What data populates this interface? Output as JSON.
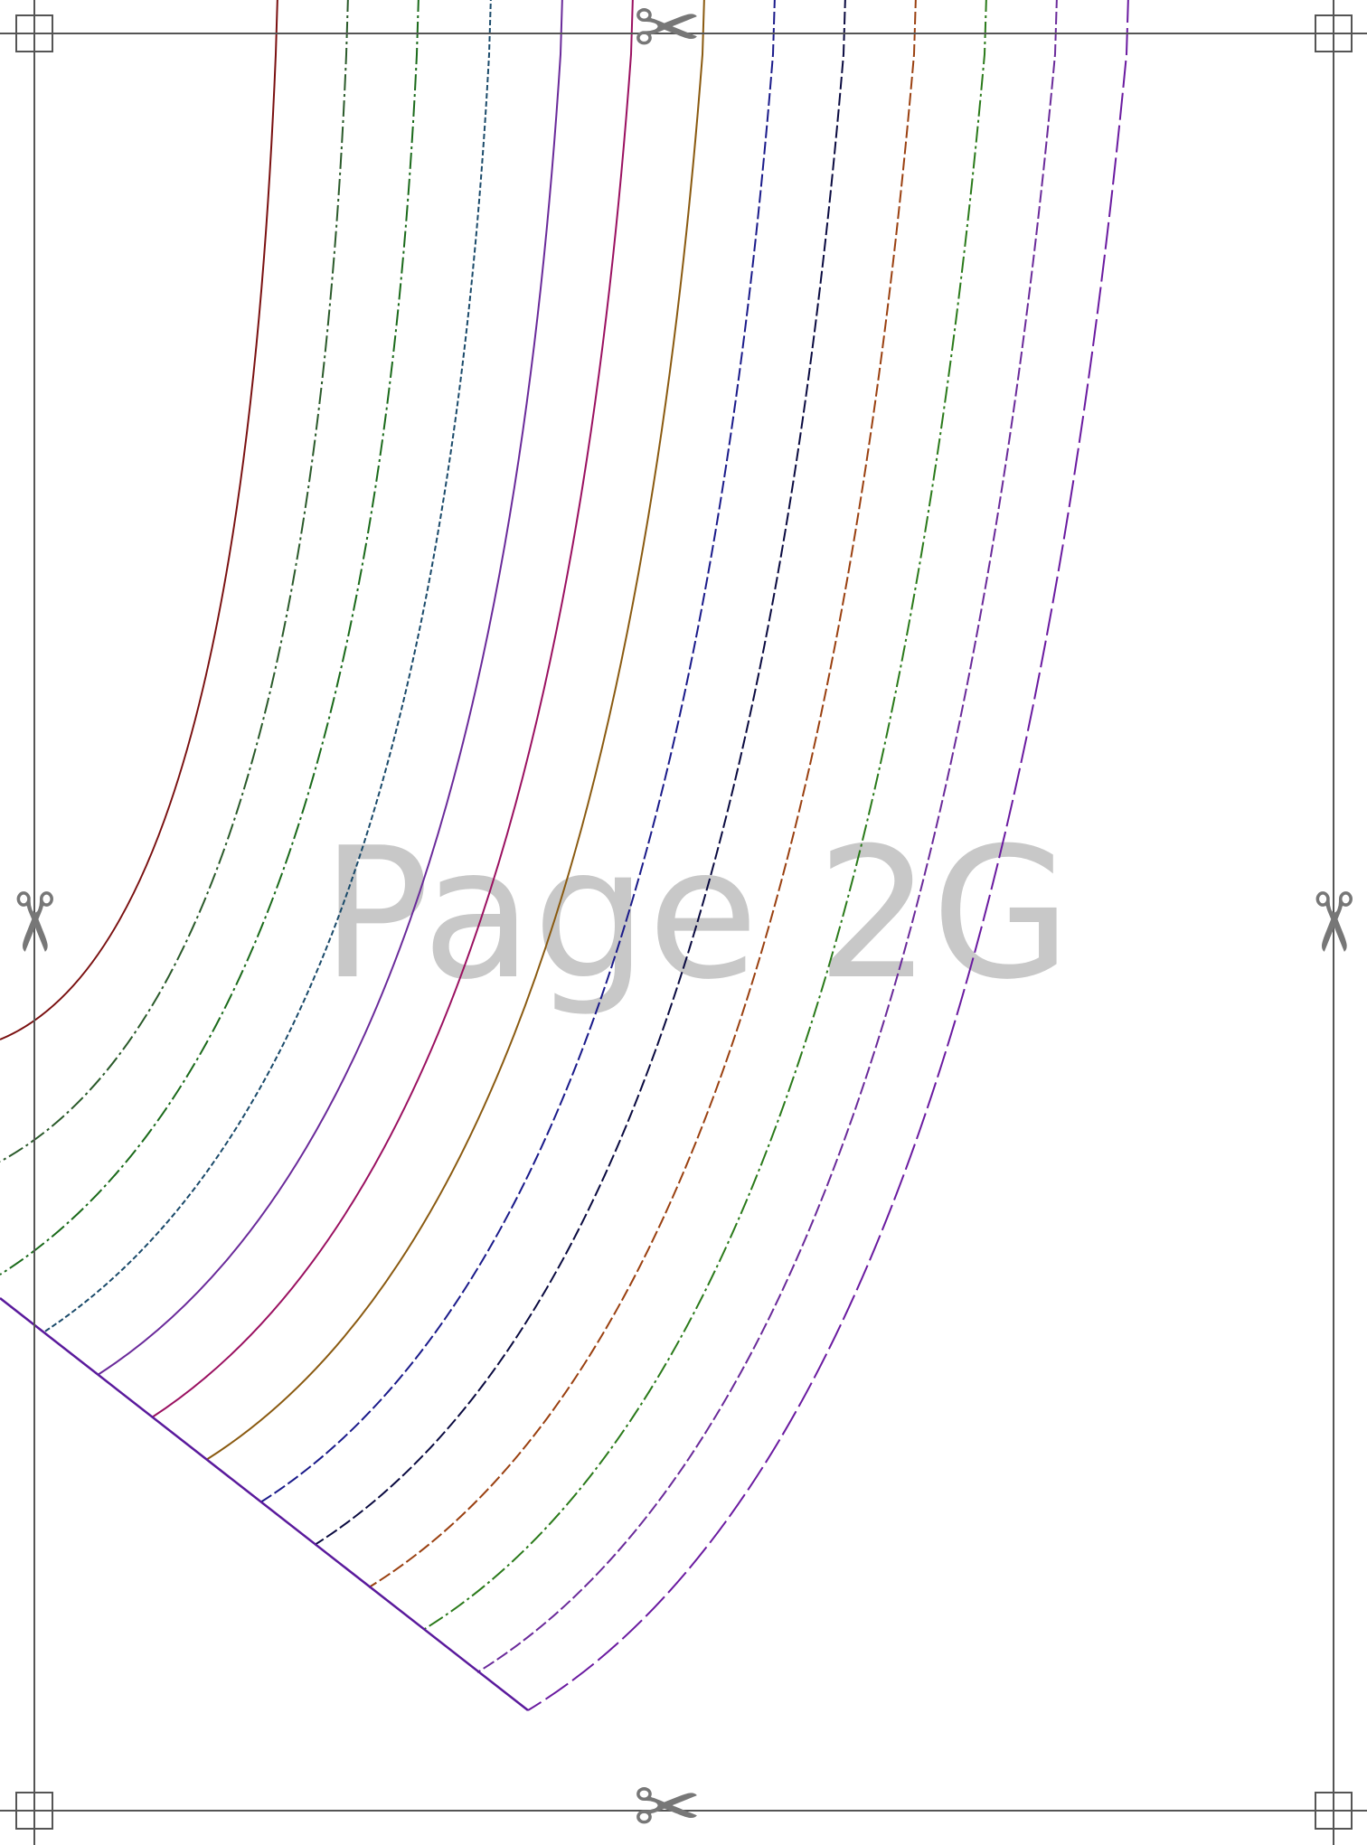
{
  "page_label": "Page 2G",
  "colors": {
    "frame": "#555555",
    "scissors": "#777777",
    "watermark": "#c8c8c8",
    "hem": "#5a1a9c"
  },
  "icons": {
    "cut_marker": "scissors-icon",
    "corner_marker": "registration-square-icon"
  },
  "scissor_glyph": "✂",
  "size_lines": [
    {
      "color": "#7a1010",
      "style": "solid"
    },
    {
      "color": "#2a5a2a",
      "style": "dash-dot"
    },
    {
      "color": "#1a6a1a",
      "style": "dash-dot"
    },
    {
      "color": "#1a4a6a",
      "style": "dotted"
    },
    {
      "color": "#6a2a9a",
      "style": "solid"
    },
    {
      "color": "#9a1060",
      "style": "solid"
    },
    {
      "color": "#8a5a10",
      "style": "solid"
    },
    {
      "color": "#1a1a8a",
      "style": "dash"
    },
    {
      "color": "#0a0a40",
      "style": "dash"
    },
    {
      "color": "#9a4010",
      "style": "dash"
    },
    {
      "color": "#2a7a1a",
      "style": "dash-dot"
    },
    {
      "color": "#6a2a9a",
      "style": "dash"
    },
    {
      "color": "#6a1aa0",
      "style": "long-dash"
    }
  ]
}
